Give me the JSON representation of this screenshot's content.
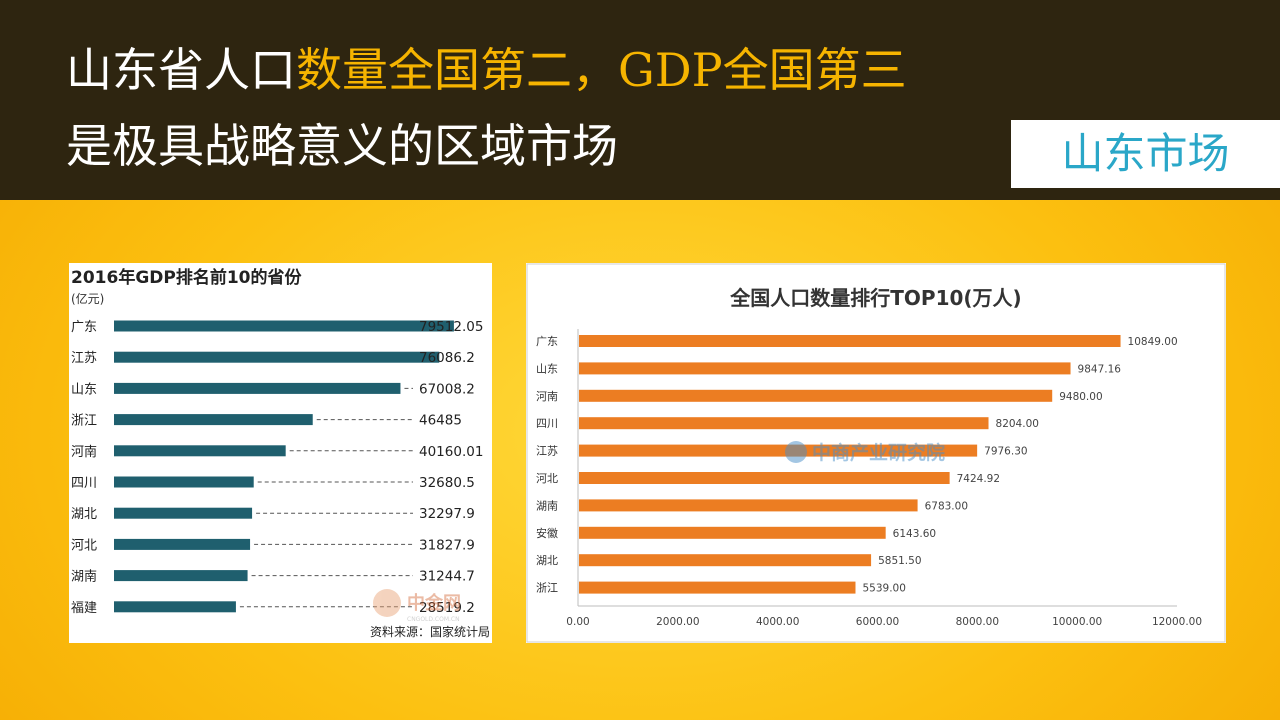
{
  "header": {
    "line1_white": "山东省人口",
    "line1_highlight": "数量全国第二，GDP全国第三",
    "line2": "是极具战略意义的区域市场",
    "market_label": "山东市场"
  },
  "chart_data": [
    {
      "type": "bar",
      "title": "2016年GDP排名前10的省份",
      "unit": "(亿元)",
      "categories": [
        "广东",
        "江苏",
        "山东",
        "浙江",
        "河南",
        "四川",
        "湖北",
        "河北",
        "湖南",
        "福建"
      ],
      "values": [
        79512.05,
        76086.2,
        67008.2,
        46485,
        40160.01,
        32680.5,
        32297.9,
        31827.9,
        31244.7,
        28519.2
      ],
      "value_labels": [
        "79512.05",
        "76086.2",
        "67008.2",
        "46485",
        "40160.01",
        "32680.5",
        "32297.9",
        "31827.9",
        "31244.7",
        "28519.2"
      ],
      "source": "资料来源：国家统计局",
      "watermark": "中金网",
      "watermark_sub": "CNGOLD.COM.CN",
      "bar_color": "#1f5f6e",
      "xlim": [
        0,
        80000
      ]
    },
    {
      "type": "bar",
      "title": "全国人口数量排行TOP10(万人)",
      "categories": [
        "广东",
        "山东",
        "河南",
        "四川",
        "江苏",
        "河北",
        "湖南",
        "安徽",
        "湖北",
        "浙江"
      ],
      "values": [
        10849.0,
        9847.16,
        9480.0,
        8204.0,
        7976.3,
        7424.92,
        6783.0,
        6143.6,
        5851.5,
        5539.0
      ],
      "value_labels": [
        "10849.00",
        "9847.16",
        "9480.00",
        "8204.00",
        "7976.30",
        "7424.92",
        "6783.00",
        "6143.60",
        "5851.50",
        "5539.00"
      ],
      "x_ticks": [
        "0.00",
        "2000.00",
        "4000.00",
        "6000.00",
        "8000.00",
        "10000.00",
        "12000.00"
      ],
      "xlim": [
        0,
        12000
      ],
      "watermark": "中商产业研究院",
      "bar_color": "#ec7d22"
    }
  ]
}
